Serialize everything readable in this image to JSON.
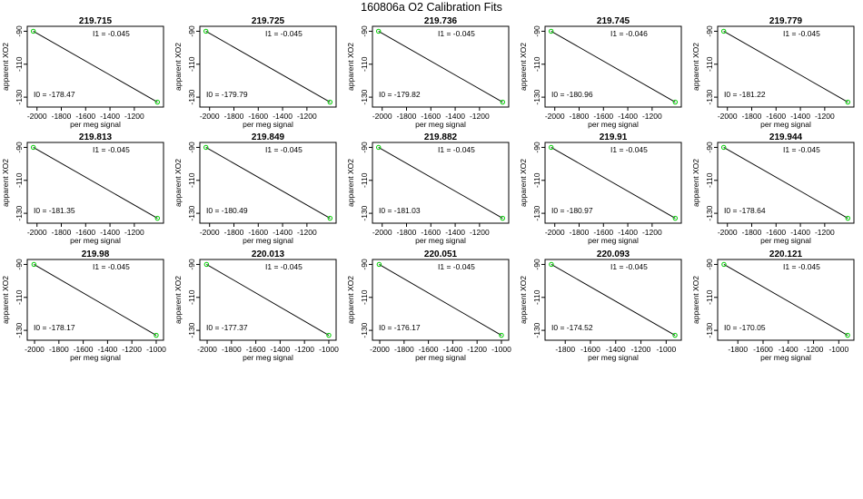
{
  "suptitle": "160806a   O2 Calibration Fits",
  "colors": {
    "line": "#000000",
    "point": "#00cc00",
    "frame": "#000000"
  },
  "chart_data": [
    {
      "type": "scatter",
      "title": "219.715",
      "xlabel": "per meg signal",
      "ylabel": "apparent XO2",
      "xticks": [
        -2000,
        -1800,
        -1600,
        -1400,
        -1200
      ],
      "yticks": [
        -90,
        -110,
        -130
      ],
      "xlim": [
        -2080,
        -960
      ],
      "ylim": [
        -136,
        -87
      ],
      "points": [
        [
          -2030,
          -90
        ],
        [
          -1010,
          -133
        ]
      ],
      "i1": "I1 =  -0.045",
      "i0": "I0 =  -178.47"
    },
    {
      "type": "scatter",
      "title": "219.725",
      "xlabel": "per meg signal",
      "ylabel": "apparent XO2",
      "xticks": [
        -2000,
        -1800,
        -1600,
        -1400,
        -1200
      ],
      "yticks": [
        -90,
        -110,
        -130
      ],
      "xlim": [
        -2080,
        -960
      ],
      "ylim": [
        -136,
        -87
      ],
      "points": [
        [
          -2030,
          -90
        ],
        [
          -1010,
          -133
        ]
      ],
      "i1": "I1 =  -0.045",
      "i0": "I0 =  -179.79"
    },
    {
      "type": "scatter",
      "title": "219.736",
      "xlabel": "per meg signal",
      "ylabel": "apparent XO2",
      "xticks": [
        -2000,
        -1800,
        -1600,
        -1400,
        -1200
      ],
      "yticks": [
        -90,
        -110,
        -130
      ],
      "xlim": [
        -2080,
        -960
      ],
      "ylim": [
        -136,
        -87
      ],
      "points": [
        [
          -2030,
          -90
        ],
        [
          -1010,
          -133
        ]
      ],
      "i1": "I1 =  -0.045",
      "i0": "I0 =  -179.82"
    },
    {
      "type": "scatter",
      "title": "219.745",
      "xlabel": "per meg signal",
      "ylabel": "apparent XO2",
      "xticks": [
        -2000,
        -1800,
        -1600,
        -1400,
        -1200
      ],
      "yticks": [
        -90,
        -110,
        -130
      ],
      "xlim": [
        -2080,
        -960
      ],
      "ylim": [
        -136,
        -87
      ],
      "points": [
        [
          -2030,
          -90
        ],
        [
          -1010,
          -133
        ]
      ],
      "i1": "I1 =  -0.046",
      "i0": "I0 =  -180.96"
    },
    {
      "type": "scatter",
      "title": "219.779",
      "xlabel": "per meg signal",
      "ylabel": "apparent XO2",
      "xticks": [
        -2000,
        -1800,
        -1600,
        -1400,
        -1200
      ],
      "yticks": [
        -90,
        -110,
        -130
      ],
      "xlim": [
        -2080,
        -960
      ],
      "ylim": [
        -136,
        -87
      ],
      "points": [
        [
          -2030,
          -90
        ],
        [
          -1010,
          -133
        ]
      ],
      "i1": "I1 =  -0.045",
      "i0": "I0 =  -181.22"
    },
    {
      "type": "scatter",
      "title": "219.813",
      "xlabel": "per meg signal",
      "ylabel": "apparent XO2",
      "xticks": [
        -2000,
        -1800,
        -1600,
        -1400,
        -1200
      ],
      "yticks": [
        -90,
        -110,
        -130
      ],
      "xlim": [
        -2080,
        -960
      ],
      "ylim": [
        -136,
        -87
      ],
      "points": [
        [
          -2030,
          -90
        ],
        [
          -1010,
          -133
        ]
      ],
      "i1": "I1 =  -0.045",
      "i0": "I0 =  -181.35"
    },
    {
      "type": "scatter",
      "title": "219.849",
      "xlabel": "per meg signal",
      "ylabel": "apparent XO2",
      "xticks": [
        -2000,
        -1800,
        -1600,
        -1400,
        -1200
      ],
      "yticks": [
        -90,
        -110,
        -130
      ],
      "xlim": [
        -2080,
        -960
      ],
      "ylim": [
        -136,
        -87
      ],
      "points": [
        [
          -2030,
          -90
        ],
        [
          -1010,
          -133
        ]
      ],
      "i1": "I1 =  -0.045",
      "i0": "I0 =  -180.49"
    },
    {
      "type": "scatter",
      "title": "219.882",
      "xlabel": "per meg signal",
      "ylabel": "apparent XO2",
      "xticks": [
        -2000,
        -1800,
        -1600,
        -1400,
        -1200
      ],
      "yticks": [
        -90,
        -110,
        -130
      ],
      "xlim": [
        -2080,
        -960
      ],
      "ylim": [
        -136,
        -87
      ],
      "points": [
        [
          -2030,
          -90
        ],
        [
          -1010,
          -133
        ]
      ],
      "i1": "I1 =  -0.045",
      "i0": "I0 =  -181.03"
    },
    {
      "type": "scatter",
      "title": "219.91",
      "xlabel": "per meg signal",
      "ylabel": "apparent XO2",
      "xticks": [
        -2000,
        -1800,
        -1600,
        -1400,
        -1200
      ],
      "yticks": [
        -90,
        -110,
        -130
      ],
      "xlim": [
        -2080,
        -960
      ],
      "ylim": [
        -136,
        -87
      ],
      "points": [
        [
          -2030,
          -90
        ],
        [
          -1010,
          -133
        ]
      ],
      "i1": "I1 =  -0.045",
      "i0": "I0 =  -180.97"
    },
    {
      "type": "scatter",
      "title": "219.944",
      "xlabel": "per meg signal",
      "ylabel": "apparent XO2",
      "xticks": [
        -2000,
        -1800,
        -1600,
        -1400,
        -1200
      ],
      "yticks": [
        -90,
        -110,
        -130
      ],
      "xlim": [
        -2080,
        -960
      ],
      "ylim": [
        -136,
        -87
      ],
      "points": [
        [
          -2030,
          -90
        ],
        [
          -1010,
          -133
        ]
      ],
      "i1": "I1 =  -0.045",
      "i0": "I0 =  -178.64"
    },
    {
      "type": "scatter",
      "title": "219.98",
      "xlabel": "per meg signal",
      "ylabel": "apparent XO2",
      "xticks": [
        -2000,
        -1800,
        -1600,
        -1400,
        -1200,
        -1000
      ],
      "yticks": [
        -90,
        -110,
        -130
      ],
      "xlim": [
        -2060,
        -940
      ],
      "ylim": [
        -136,
        -87
      ],
      "points": [
        [
          -2005,
          -90
        ],
        [
          -1000,
          -133
        ]
      ],
      "i1": "I1 =  -0.045",
      "i0": "I0 =  -178.17"
    },
    {
      "type": "scatter",
      "title": "220.013",
      "xlabel": "per meg signal",
      "ylabel": "apparent XO2",
      "xticks": [
        -2000,
        -1800,
        -1600,
        -1400,
        -1200,
        -1000
      ],
      "yticks": [
        -90,
        -110,
        -130
      ],
      "xlim": [
        -2060,
        -940
      ],
      "ylim": [
        -136,
        -87
      ],
      "points": [
        [
          -2005,
          -90
        ],
        [
          -1000,
          -133
        ]
      ],
      "i1": "I1 =  -0.045",
      "i0": "I0 =  -177.37"
    },
    {
      "type": "scatter",
      "title": "220.051",
      "xlabel": "per meg signal",
      "ylabel": "apparent XO2",
      "xticks": [
        -2000,
        -1800,
        -1600,
        -1400,
        -1200,
        -1000
      ],
      "yticks": [
        -90,
        -110,
        -130
      ],
      "xlim": [
        -2060,
        -940
      ],
      "ylim": [
        -136,
        -87
      ],
      "points": [
        [
          -2005,
          -90
        ],
        [
          -1000,
          -133
        ]
      ],
      "i1": "I1 =  -0.045",
      "i0": "I0 =  -176.17"
    },
    {
      "type": "scatter",
      "title": "220.093",
      "xlabel": "per meg signal",
      "ylabel": "apparent XO2",
      "xticks": [
        -1800,
        -1600,
        -1400,
        -1200,
        -1000
      ],
      "yticks": [
        -90,
        -110,
        -130
      ],
      "xlim": [
        -1960,
        -880
      ],
      "ylim": [
        -136,
        -87
      ],
      "points": [
        [
          -1910,
          -90
        ],
        [
          -930,
          -133
        ]
      ],
      "i1": "I1 =  -0.045",
      "i0": "I0 =  -174.52"
    },
    {
      "type": "scatter",
      "title": "220.121",
      "xlabel": "per meg signal",
      "ylabel": "apparent XO2",
      "xticks": [
        -1800,
        -1600,
        -1400,
        -1200,
        -1000
      ],
      "yticks": [
        -90,
        -110,
        -130
      ],
      "xlim": [
        -1960,
        -880
      ],
      "ylim": [
        -136,
        -87
      ],
      "points": [
        [
          -1910,
          -90
        ],
        [
          -930,
          -133
        ]
      ],
      "i1": "I1 =  -0.045",
      "i0": "I0 =  -170.05"
    }
  ]
}
